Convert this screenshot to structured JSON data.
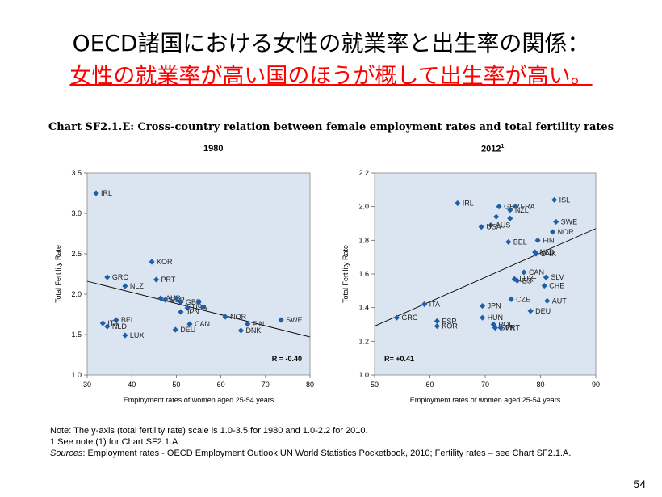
{
  "slide": {
    "title": "OECD諸国における女性の就業率と出生率の関係：",
    "subtitle": "女性の就業率が高い国のほうが概して出生率が高い。",
    "page_number": "54"
  },
  "chart_heading": "Chart SF2.1.E: Cross-country relation between female employment rates and total fertility rates",
  "colors": {
    "marker": "#1f5fa8",
    "plot_bg": "#dbe5f1",
    "trend_line": "#000000",
    "subtitle": "#ff0000"
  },
  "notes": {
    "note_label": "Note",
    "note_text": ": The y-axis (total fertility rate) scale is 1.0-3.5 for 1980 and 1.0-2.2 for 2010.",
    "footnote": "1  See note (1) for Chart SF2.1.A",
    "sources_label": "Sources",
    "sources_text": ": Employment rates - OECD Employment Outlook UN World Statistics Pocketbook, 2010; Fertility rates – see Chart SF2.1.A."
  },
  "chart_data": [
    {
      "type": "scatter",
      "title": "1980",
      "title_sup": "",
      "xlabel": "Employment rates of women aged 25-54 years",
      "ylabel": "Total Fertility Rate",
      "xlim": [
        30,
        80
      ],
      "ylim": [
        1.0,
        3.5
      ],
      "xticks": [
        "30",
        "40",
        "50",
        "60",
        "70",
        "80"
      ],
      "yticks": [
        "1.0",
        "1.5",
        "2.0",
        "2.5",
        "3.0",
        "3.5"
      ],
      "ytick_values": [
        1.0,
        1.5,
        2.0,
        2.5,
        3.0,
        3.5
      ],
      "xtick_values": [
        30,
        40,
        50,
        60,
        70,
        80
      ],
      "r_label": "R = -0.40",
      "trend": {
        "x": [
          30,
          80
        ],
        "y": [
          2.16,
          1.47
        ]
      },
      "points": [
        {
          "label": "IRL",
          "x": 32,
          "y": 3.25
        },
        {
          "label": "KOR",
          "x": 44.5,
          "y": 2.4
        },
        {
          "label": "GRC",
          "x": 34.5,
          "y": 2.21
        },
        {
          "label": "PRT",
          "x": 45.5,
          "y": 2.18
        },
        {
          "label": "NLZ",
          "x": 38.5,
          "y": 2.1
        },
        {
          "label": "AUS",
          "x": 46.5,
          "y": 1.95
        },
        {
          "label": "ESP",
          "x": 47.5,
          "y": 1.93
        },
        {
          "label": "",
          "x": 50,
          "y": 1.95
        },
        {
          "label": "GBR",
          "x": 51,
          "y": 1.9
        },
        {
          "label": "USA",
          "x": 52.5,
          "y": 1.83
        },
        {
          "label": "JPN",
          "x": 51,
          "y": 1.78
        },
        {
          "label": "",
          "x": 55,
          "y": 1.9
        },
        {
          "label": "",
          "x": 56,
          "y": 1.84
        },
        {
          "label": "NOR",
          "x": 61,
          "y": 1.72
        },
        {
          "label": "SWE",
          "x": 73.5,
          "y": 1.68
        },
        {
          "label": "FIN",
          "x": 66,
          "y": 1.63
        },
        {
          "label": "DNK",
          "x": 64.5,
          "y": 1.55
        },
        {
          "label": "CAN",
          "x": 53,
          "y": 1.63
        },
        {
          "label": "DEU",
          "x": 49.8,
          "y": 1.56
        },
        {
          "label": "BEL",
          "x": 36.5,
          "y": 1.68
        },
        {
          "label": "ITA",
          "x": 33.5,
          "y": 1.64
        },
        {
          "label": "NLD",
          "x": 34.5,
          "y": 1.6
        },
        {
          "label": "LUX",
          "x": 38.5,
          "y": 1.49
        }
      ]
    },
    {
      "type": "scatter",
      "title": "2012",
      "title_sup": "1",
      "xlabel": "Employment rates of women aged 25-54 years",
      "ylabel": "Total Fertility Rate",
      "xlim": [
        50,
        90
      ],
      "ylim": [
        1.0,
        2.2
      ],
      "xticks": [
        "50",
        "60",
        "70",
        "80",
        "90"
      ],
      "yticks": [
        "1.0",
        "1.2",
        "1.4",
        "1.6",
        "1.8",
        "2.0",
        "2.2"
      ],
      "ytick_values": [
        1.0,
        1.2,
        1.4,
        1.6,
        1.8,
        2.0,
        2.2
      ],
      "xtick_values": [
        50,
        60,
        70,
        80,
        90
      ],
      "r_label": "R= +0.41",
      "trend": {
        "x": [
          50,
          90
        ],
        "y": [
          1.29,
          1.87
        ]
      },
      "points": [
        {
          "label": "IRL",
          "x": 65,
          "y": 2.02
        },
        {
          "label": "ISL",
          "x": 82.5,
          "y": 2.04
        },
        {
          "label": "GBR",
          "x": 72.5,
          "y": 2.0
        },
        {
          "label": "NZL",
          "x": 74.5,
          "y": 1.98
        },
        {
          "label": "FRA",
          "x": 75.5,
          "y": 2.0
        },
        {
          "label": "",
          "x": 72,
          "y": 1.94
        },
        {
          "label": "",
          "x": 74.5,
          "y": 1.93
        },
        {
          "label": "AUS",
          "x": 71,
          "y": 1.89
        },
        {
          "label": "USA",
          "x": 69.3,
          "y": 1.88
        },
        {
          "label": "SWE",
          "x": 82.8,
          "y": 1.91
        },
        {
          "label": "NOR",
          "x": 82.2,
          "y": 1.85
        },
        {
          "label": "FIN",
          "x": 79.5,
          "y": 1.8
        },
        {
          "label": "BEL",
          "x": 74.2,
          "y": 1.79
        },
        {
          "label": "NLD",
          "x": 79,
          "y": 1.73
        },
        {
          "label": "DNK",
          "x": 79.2,
          "y": 1.72
        },
        {
          "label": "CAN",
          "x": 77,
          "y": 1.61
        },
        {
          "label": "SLV",
          "x": 81,
          "y": 1.58
        },
        {
          "label": "LUX",
          "x": 75.3,
          "y": 1.57
        },
        {
          "label": "EST",
          "x": 75.8,
          "y": 1.56
        },
        {
          "label": "CHE",
          "x": 80.7,
          "y": 1.53
        },
        {
          "label": "JPN",
          "x": 69.5,
          "y": 1.41
        },
        {
          "label": "CZE",
          "x": 74.7,
          "y": 1.45
        },
        {
          "label": "AUT",
          "x": 81.2,
          "y": 1.44
        },
        {
          "label": "DEU",
          "x": 78.2,
          "y": 1.38
        },
        {
          "label": "ITA",
          "x": 59,
          "y": 1.42
        },
        {
          "label": "GRC",
          "x": 54,
          "y": 1.34
        },
        {
          "label": "ESP",
          "x": 61.3,
          "y": 1.32
        },
        {
          "label": "KOR",
          "x": 61.3,
          "y": 1.29
        },
        {
          "label": "HUN",
          "x": 69.5,
          "y": 1.34
        },
        {
          "label": "POL",
          "x": 71.5,
          "y": 1.3
        },
        {
          "label": "SVK",
          "x": 71.8,
          "y": 1.28
        },
        {
          "label": "PRT",
          "x": 72.8,
          "y": 1.28
        }
      ]
    }
  ]
}
